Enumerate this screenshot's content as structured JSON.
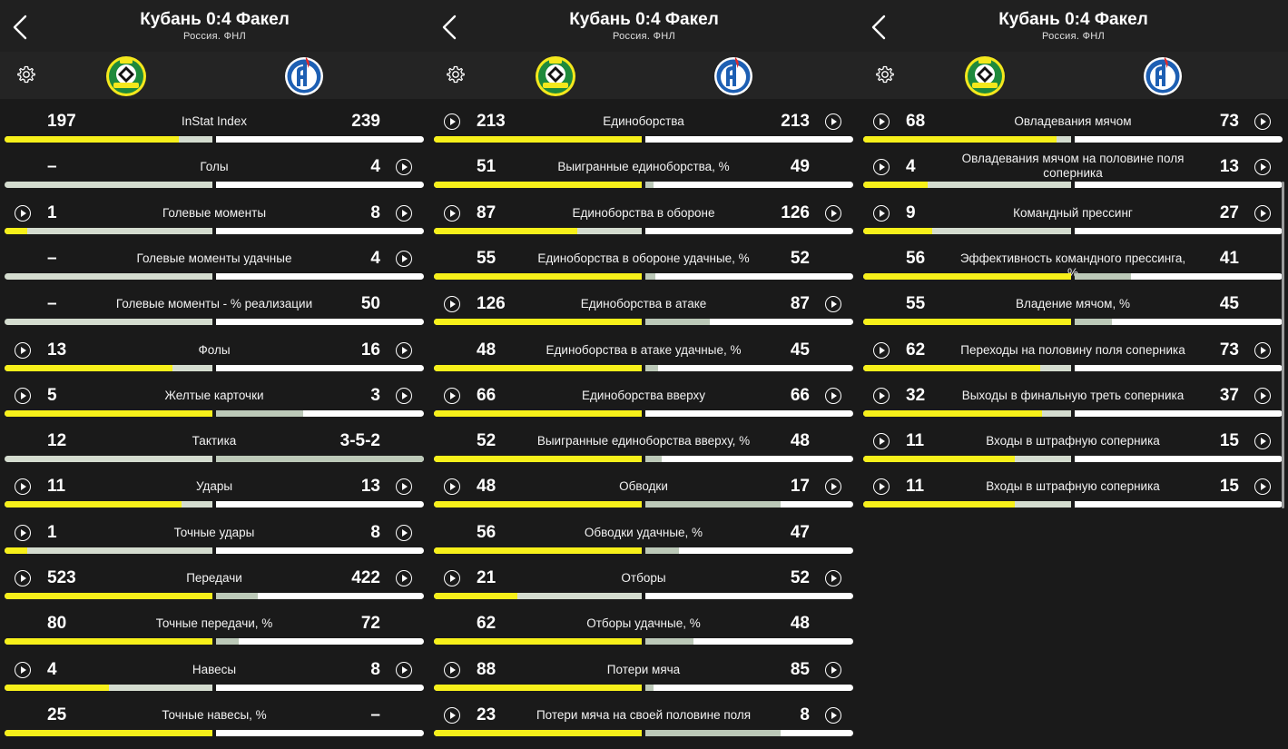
{
  "panels": [
    {
      "header": {
        "title": "Кубань 0:4 Факел",
        "subtitle": "Россия. ФНЛ"
      },
      "rows": [
        {
          "home": "197",
          "label": "InStat Index",
          "away": "239",
          "home_frac": 0.84,
          "away_frac": 0,
          "play_left": false,
          "play_right": false
        },
        {
          "home": "–",
          "label": "Голы",
          "away": "4",
          "home_frac": 0,
          "away_frac": 0,
          "play_left": false,
          "play_right": true
        },
        {
          "home": "1",
          "label": "Голевые моменты",
          "away": "8",
          "home_frac": 0.11,
          "away_frac": 0,
          "play_left": true,
          "play_right": true
        },
        {
          "home": "–",
          "label": "Голевые моменты удачные",
          "away": "4",
          "home_frac": 0,
          "away_frac": 0,
          "play_left": false,
          "play_right": true
        },
        {
          "home": "–",
          "label": "Голевые моменты - % реализации",
          "away": "50",
          "home_frac": 0,
          "away_frac": 0,
          "play_left": false,
          "play_right": false
        },
        {
          "home": "13",
          "label": "Фолы",
          "away": "16",
          "home_frac": 0.81,
          "away_frac": 0,
          "play_left": true,
          "play_right": true
        },
        {
          "home": "5",
          "label": "Желтые карточки",
          "away": "3",
          "home_frac": 1,
          "away_frac": 0.42,
          "play_left": true,
          "play_right": true
        },
        {
          "home": "12",
          "label": "Тактика",
          "away": "3-5-2",
          "home_frac": 0,
          "away_frac": 1,
          "play_left": false,
          "play_right": false
        },
        {
          "home": "11",
          "label": "Удары",
          "away": "13",
          "home_frac": 0.85,
          "away_frac": 0,
          "play_left": true,
          "play_right": true
        },
        {
          "home": "1",
          "label": "Точные удары",
          "away": "8",
          "home_frac": 0.11,
          "away_frac": 0,
          "play_left": true,
          "play_right": true
        },
        {
          "home": "523",
          "label": "Передачи",
          "away": "422",
          "home_frac": 1,
          "away_frac": 0.2,
          "play_left": true,
          "play_right": true
        },
        {
          "home": "80",
          "label": "Точные передачи, %",
          "away": "72",
          "home_frac": 1,
          "away_frac": 0.11,
          "play_left": false,
          "play_right": false
        },
        {
          "home": "4",
          "label": "Навесы",
          "away": "8",
          "home_frac": 0.5,
          "away_frac": 0,
          "play_left": true,
          "play_right": true
        },
        {
          "home": "25",
          "label": "Точные навесы, %",
          "away": "–",
          "home_frac": 1,
          "away_frac": 0,
          "play_left": false,
          "play_right": false
        }
      ]
    },
    {
      "header": {
        "title": "Кубань 0:4 Факел",
        "subtitle": "Россия. ФНЛ"
      },
      "rows": [
        {
          "home": "213",
          "label": "Единоборства",
          "away": "213",
          "home_frac": 1,
          "away_frac": 0,
          "play_left": true,
          "play_right": true
        },
        {
          "home": "51",
          "label": "Выигранные единоборства, %",
          "away": "49",
          "home_frac": 1,
          "away_frac": 0.04,
          "play_left": false,
          "play_right": false
        },
        {
          "home": "87",
          "label": "Единоборства в обороне",
          "away": "126",
          "home_frac": 0.69,
          "away_frac": 0,
          "play_left": true,
          "play_right": true
        },
        {
          "home": "55",
          "label": "Единоборства в обороне удачные, %",
          "away": "52",
          "home_frac": 1,
          "away_frac": 0.05,
          "play_left": false,
          "play_right": false
        },
        {
          "home": "126",
          "label": "Единоборства в атаке",
          "away": "87",
          "home_frac": 1,
          "away_frac": 0.31,
          "play_left": true,
          "play_right": true
        },
        {
          "home": "48",
          "label": "Единоборства в атаке удачные, %",
          "away": "45",
          "home_frac": 1,
          "away_frac": 0.06,
          "play_left": false,
          "play_right": false
        },
        {
          "home": "66",
          "label": "Единоборства вверху",
          "away": "66",
          "home_frac": 1,
          "away_frac": 0,
          "play_left": true,
          "play_right": true
        },
        {
          "home": "52",
          "label": "Выигранные единоборства вверху, %",
          "away": "48",
          "home_frac": 1,
          "away_frac": 0.08,
          "play_left": false,
          "play_right": false
        },
        {
          "home": "48",
          "label": "Обводки",
          "away": "17",
          "home_frac": 1,
          "away_frac": 0.65,
          "play_left": true,
          "play_right": true
        },
        {
          "home": "56",
          "label": "Обводки удачные, %",
          "away": "47",
          "home_frac": 1,
          "away_frac": 0.16,
          "play_left": false,
          "play_right": false
        },
        {
          "home": "21",
          "label": "Отборы",
          "away": "52",
          "home_frac": 0.4,
          "away_frac": 0,
          "play_left": true,
          "play_right": true
        },
        {
          "home": "62",
          "label": "Отборы удачные, %",
          "away": "48",
          "home_frac": 1,
          "away_frac": 0.23,
          "play_left": false,
          "play_right": false
        },
        {
          "home": "88",
          "label": "Потери мяча",
          "away": "85",
          "home_frac": 1,
          "away_frac": 0.04,
          "play_left": true,
          "play_right": true
        },
        {
          "home": "23",
          "label": "Потери мяча на своей половине поля",
          "away": "8",
          "home_frac": 1,
          "away_frac": 0.65,
          "play_left": true,
          "play_right": true
        }
      ]
    },
    {
      "header": {
        "title": "Кубань 0:4 Факел",
        "subtitle": "Россия. ФНЛ"
      },
      "rows": [
        {
          "home": "68",
          "label": "Овладевания мячом",
          "away": "73",
          "home_frac": 0.93,
          "away_frac": 0,
          "play_left": true,
          "play_right": true
        },
        {
          "home": "4",
          "label": "Овладевания мячом на половине поля соперника",
          "away": "13",
          "home_frac": 0.31,
          "away_frac": 0,
          "play_left": true,
          "play_right": true
        },
        {
          "home": "9",
          "label": "Командный прессинг",
          "away": "27",
          "home_frac": 0.33,
          "away_frac": 0,
          "play_left": true,
          "play_right": true
        },
        {
          "home": "56",
          "label": "Эффективность командного прессинга, %",
          "away": "41",
          "home_frac": 1,
          "away_frac": 0.27,
          "play_left": false,
          "play_right": false
        },
        {
          "home": "55",
          "label": "Владение мячом, %",
          "away": "45",
          "home_frac": 1,
          "away_frac": 0.18,
          "play_left": false,
          "play_right": false
        },
        {
          "home": "62",
          "label": "Переходы на половину поля соперника",
          "away": "73",
          "home_frac": 0.85,
          "away_frac": 0,
          "play_left": true,
          "play_right": true
        },
        {
          "home": "32",
          "label": "Выходы в финальную треть соперника",
          "away": "37",
          "home_frac": 0.86,
          "away_frac": 0,
          "play_left": true,
          "play_right": true
        },
        {
          "home": "11",
          "label": "Входы в штрафную соперника",
          "away": "15",
          "home_frac": 0.73,
          "away_frac": 0,
          "play_left": true,
          "play_right": true
        },
        {
          "home": "11",
          "label": "Входы в штрафную соперника",
          "away": "15",
          "home_frac": 0.73,
          "away_frac": 0,
          "play_left": true,
          "play_right": true
        }
      ]
    }
  ],
  "colors": {
    "home_bar": "#f7f01a",
    "away_bar": "#bcc9b8",
    "bg": "#1a1a1a"
  }
}
